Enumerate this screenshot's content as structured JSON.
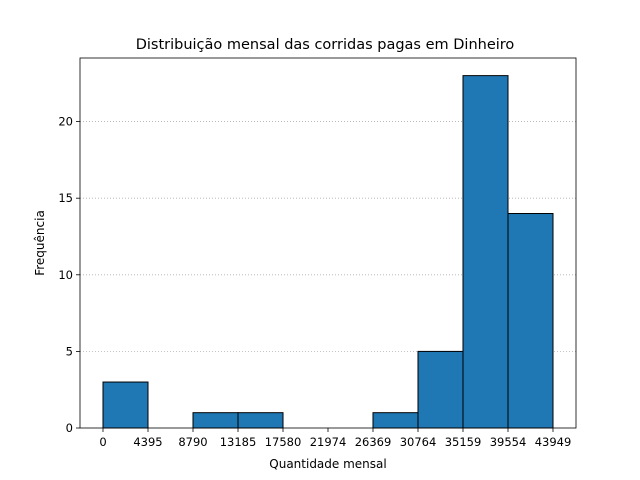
{
  "chart_data": {
    "type": "bar",
    "title": "Distribuição mensal das corridas pagas em Dinheiro",
    "xlabel": "Quantidade mensal",
    "ylabel": "Frequência",
    "bin_edges": [
      0,
      4395,
      8790,
      13185,
      17580,
      21974,
      26369,
      30764,
      35159,
      39554,
      43949
    ],
    "x_tick_labels": [
      "0",
      "4395",
      "8790",
      "13185",
      "17580",
      "21974",
      "26369",
      "30764",
      "35159",
      "39554",
      "43949"
    ],
    "values": [
      3,
      0,
      1,
      1,
      0,
      0,
      1,
      5,
      23,
      14
    ],
    "ylim": [
      0,
      24.15
    ],
    "y_ticks": [
      0,
      5,
      10,
      15,
      20
    ],
    "grid": "y-dotted",
    "colors": {
      "bar": "#1f77b4",
      "edge": "#000000",
      "grid": "#b0b0b0"
    }
  }
}
